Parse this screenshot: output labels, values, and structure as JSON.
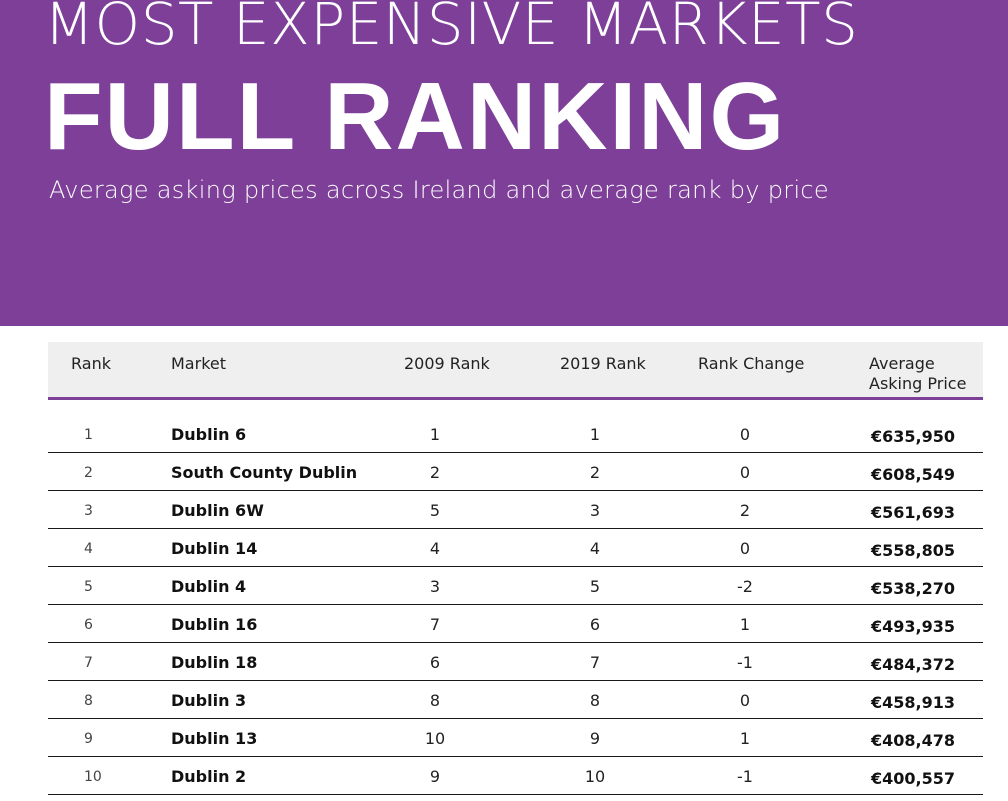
{
  "header": {
    "title_top": "MOST EXPENSIVE MARKETS",
    "title_main": "FULL RANKING",
    "subtitle": "Average asking prices across Ireland and average rank by price"
  },
  "colors": {
    "banner": "#7d3f98",
    "header_rule": "#7d3f98"
  },
  "chart_data": {
    "type": "table",
    "columns": [
      "Rank",
      "Market",
      "2009 Rank",
      "2019 Rank",
      "Rank Change",
      "Average Asking Price"
    ],
    "rows": [
      {
        "rank": "1",
        "market": "Dublin 6",
        "rank_2009": "1",
        "rank_2019": "1",
        "change": "0",
        "price": "€635,950"
      },
      {
        "rank": "2",
        "market": "South County Dublin",
        "rank_2009": "2",
        "rank_2019": "2",
        "change": "0",
        "price": "€608,549"
      },
      {
        "rank": "3",
        "market": "Dublin 6W",
        "rank_2009": "5",
        "rank_2019": "3",
        "change": "2",
        "price": "€561,693"
      },
      {
        "rank": "4",
        "market": "Dublin 14",
        "rank_2009": "4",
        "rank_2019": "4",
        "change": "0",
        "price": "€558,805"
      },
      {
        "rank": "5",
        "market": "Dublin 4",
        "rank_2009": "3",
        "rank_2019": "5",
        "change": "-2",
        "price": "€538,270"
      },
      {
        "rank": "6",
        "market": "Dublin 16",
        "rank_2009": "7",
        "rank_2019": "6",
        "change": "1",
        "price": "€493,935"
      },
      {
        "rank": "7",
        "market": "Dublin 18",
        "rank_2009": "6",
        "rank_2019": "7",
        "change": "-1",
        "price": "€484,372"
      },
      {
        "rank": "8",
        "market": "Dublin 3",
        "rank_2009": "8",
        "rank_2019": "8",
        "change": "0",
        "price": "€458,913"
      },
      {
        "rank": "9",
        "market": "Dublin 13",
        "rank_2009": "10",
        "rank_2019": "9",
        "change": "1",
        "price": "€408,478"
      },
      {
        "rank": "10",
        "market": "Dublin 2",
        "rank_2009": "9",
        "rank_2019": "10",
        "change": "-1",
        "price": "€400,557"
      }
    ]
  }
}
